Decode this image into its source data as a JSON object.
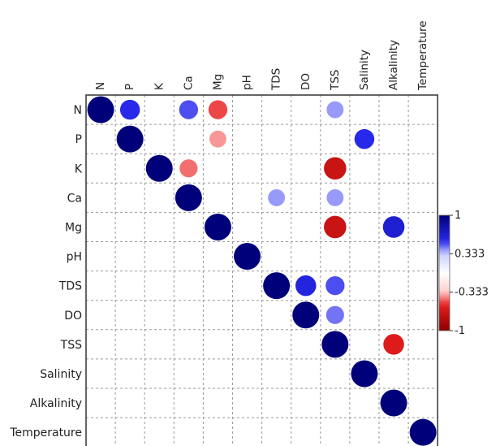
{
  "chart_data": {
    "type": "heatmap",
    "variables": [
      "N",
      "P",
      "K",
      "Ca",
      "Mg",
      "pH",
      "TDS",
      "DO",
      "TSS",
      "Salinity",
      "Alkalinity",
      "Temperature"
    ],
    "row_labels": [
      "N",
      "P",
      "K",
      "Ca",
      "Mg",
      "pH",
      "TDS",
      "DO",
      "TSS",
      "Salinity",
      "Alkalinity",
      "Temperature"
    ],
    "cells": [
      {
        "row": "N",
        "col": "N",
        "value": 1.0
      },
      {
        "row": "N",
        "col": "P",
        "value": 0.55
      },
      {
        "row": "N",
        "col": "Ca",
        "value": 0.5
      },
      {
        "row": "N",
        "col": "Mg",
        "value": -0.5
      },
      {
        "row": "N",
        "col": "TSS",
        "value": 0.4
      },
      {
        "row": "P",
        "col": "P",
        "value": 1.0
      },
      {
        "row": "P",
        "col": "Mg",
        "value": -0.4
      },
      {
        "row": "P",
        "col": "Salinity",
        "value": 0.55
      },
      {
        "row": "K",
        "col": "K",
        "value": 1.0
      },
      {
        "row": "K",
        "col": "Ca",
        "value": -0.45
      },
      {
        "row": "K",
        "col": "TSS",
        "value": -0.7
      },
      {
        "row": "Ca",
        "col": "Ca",
        "value": 1.0
      },
      {
        "row": "Ca",
        "col": "TDS",
        "value": 0.4
      },
      {
        "row": "Ca",
        "col": "TSS",
        "value": 0.4
      },
      {
        "row": "Mg",
        "col": "Mg",
        "value": 1.0
      },
      {
        "row": "Mg",
        "col": "TSS",
        "value": -0.7
      },
      {
        "row": "Mg",
        "col": "Alkalinity",
        "value": 0.65
      },
      {
        "row": "pH",
        "col": "pH",
        "value": 1.0
      },
      {
        "row": "TDS",
        "col": "TDS",
        "value": 1.0
      },
      {
        "row": "TDS",
        "col": "DO",
        "value": 0.6
      },
      {
        "row": "TDS",
        "col": "TSS",
        "value": 0.5
      },
      {
        "row": "DO",
        "col": "DO",
        "value": 1.0
      },
      {
        "row": "DO",
        "col": "TSS",
        "value": 0.45
      },
      {
        "row": "TSS",
        "col": "TSS",
        "value": 1.0
      },
      {
        "row": "TSS",
        "col": "Alkalinity",
        "value": -0.6
      },
      {
        "row": "Salinity",
        "col": "Salinity",
        "value": 1.0
      },
      {
        "row": "Alkalinity",
        "col": "Alkalinity",
        "value": 1.0
      },
      {
        "row": "Temperature",
        "col": "Temperature",
        "value": 1.0
      }
    ],
    "colorbar": {
      "range": [
        -1,
        1
      ],
      "ticks": [
        {
          "value": 1,
          "label": "1"
        },
        {
          "value": 0.333,
          "label": "0.333"
        },
        {
          "value": -0.333,
          "label": "-0.333"
        },
        {
          "value": -1,
          "label": "-1"
        }
      ],
      "colors": {
        "positive": "#00007a",
        "mid": "#ffffff",
        "negative": "#8b0000"
      }
    },
    "grid": true,
    "legend_position": "right"
  }
}
